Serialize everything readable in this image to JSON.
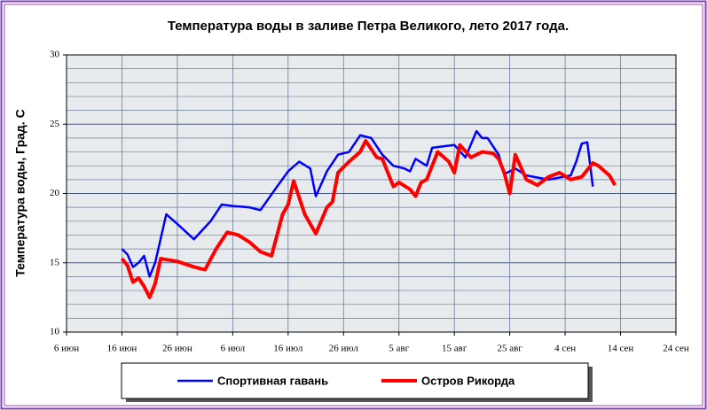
{
  "chart_data": {
    "type": "line",
    "title": "Температура воды в заливе Петра Великого,  лето 2017 года.",
    "y_label": "Температура воды, Град. С",
    "xlim": [
      "2017-06-06",
      "2017-09-24"
    ],
    "xticks": [
      {
        "value": "2017-06-06",
        "label": "6 июн"
      },
      {
        "value": "2017-06-16",
        "label": "16 июн"
      },
      {
        "value": "2017-06-26",
        "label": "26 июн"
      },
      {
        "value": "2017-07-06",
        "label": "6 июл"
      },
      {
        "value": "2017-07-16",
        "label": "16 июл"
      },
      {
        "value": "2017-07-26",
        "label": "26 июл"
      },
      {
        "value": "2017-08-05",
        "label": "5 авг"
      },
      {
        "value": "2017-08-15",
        "label": "15 авг"
      },
      {
        "value": "2017-08-25",
        "label": "25 авг"
      },
      {
        "value": "2017-09-04",
        "label": "4 сен"
      },
      {
        "value": "2017-09-14",
        "label": "14 сен"
      },
      {
        "value": "2017-09-24",
        "label": "24 сен"
      }
    ],
    "ylim": [
      10,
      30
    ],
    "yticks": [
      10,
      15,
      20,
      25,
      30
    ],
    "yminorticks": [
      11,
      12,
      13,
      14,
      16,
      17,
      18,
      19,
      21,
      22,
      23,
      24,
      26,
      27,
      28,
      29
    ],
    "grid": true,
    "series": [
      {
        "name": "Спортивная гавань",
        "color": "#0000ff",
        "x": [
          "2017-06-16",
          "2017-06-17",
          "2017-06-18",
          "2017-06-19",
          "2017-06-20",
          "2017-06-21",
          "2017-06-22",
          "2017-06-24",
          "2017-06-26",
          "2017-06-29",
          "2017-07-02",
          "2017-07-04",
          "2017-07-06",
          "2017-07-09",
          "2017-07-11",
          "2017-07-14",
          "2017-07-16",
          "2017-07-18",
          "2017-07-20",
          "2017-07-21",
          "2017-07-23",
          "2017-07-25",
          "2017-07-27",
          "2017-07-29",
          "2017-07-31",
          "2017-08-02",
          "2017-08-04",
          "2017-08-06",
          "2017-08-07",
          "2017-08-08",
          "2017-08-10",
          "2017-08-11",
          "2017-08-13",
          "2017-08-15",
          "2017-08-17",
          "2017-08-19",
          "2017-08-20",
          "2017-08-21",
          "2017-08-23",
          "2017-08-24",
          "2017-08-26",
          "2017-08-28",
          "2017-09-01",
          "2017-09-05",
          "2017-09-06",
          "2017-09-07",
          "2017-09-08",
          "2017-09-09"
        ],
        "values": [
          16.0,
          15.6,
          14.7,
          15.0,
          15.5,
          14.0,
          15.0,
          18.5,
          17.8,
          16.7,
          18.0,
          19.2,
          19.1,
          19.0,
          18.8,
          20.5,
          21.6,
          22.3,
          21.8,
          19.8,
          21.6,
          22.8,
          23.0,
          24.2,
          24.0,
          22.8,
          22.0,
          21.8,
          21.6,
          22.5,
          22.0,
          23.3,
          23.4,
          23.5,
          22.6,
          24.5,
          24.0,
          24.0,
          22.8,
          21.4,
          21.8,
          21.3,
          21.0,
          21.3,
          22.3,
          23.6,
          23.7,
          20.5
        ]
      },
      {
        "name": "Остров Рикорда",
        "color": "#ff0000",
        "x": [
          "2017-06-16",
          "2017-06-17",
          "2017-06-18",
          "2017-06-19",
          "2017-06-20",
          "2017-06-21",
          "2017-06-22",
          "2017-06-23",
          "2017-06-26",
          "2017-06-29",
          "2017-07-01",
          "2017-07-03",
          "2017-07-05",
          "2017-07-07",
          "2017-07-09",
          "2017-07-11",
          "2017-07-13",
          "2017-07-15",
          "2017-07-16",
          "2017-07-17",
          "2017-07-19",
          "2017-07-21",
          "2017-07-23",
          "2017-07-24",
          "2017-07-25",
          "2017-07-27",
          "2017-07-29",
          "2017-07-30",
          "2017-08-01",
          "2017-08-02",
          "2017-08-04",
          "2017-08-05",
          "2017-08-07",
          "2017-08-08",
          "2017-08-09",
          "2017-08-10",
          "2017-08-12",
          "2017-08-14",
          "2017-08-15",
          "2017-08-16",
          "2017-08-18",
          "2017-08-20",
          "2017-08-22",
          "2017-08-23",
          "2017-08-24",
          "2017-08-25",
          "2017-08-26",
          "2017-08-28",
          "2017-08-30",
          "2017-09-01",
          "2017-09-03",
          "2017-09-05",
          "2017-09-07",
          "2017-09-09",
          "2017-09-10",
          "2017-09-12",
          "2017-09-13"
        ],
        "values": [
          15.3,
          14.8,
          13.6,
          13.9,
          13.3,
          12.5,
          13.5,
          15.3,
          15.1,
          14.7,
          14.5,
          16.0,
          17.2,
          17.0,
          16.5,
          15.8,
          15.5,
          18.5,
          19.2,
          20.9,
          18.5,
          17.1,
          19.0,
          19.4,
          21.5,
          22.3,
          23.0,
          23.8,
          22.6,
          22.5,
          20.5,
          20.8,
          20.3,
          19.8,
          20.8,
          21.0,
          23.0,
          22.3,
          21.5,
          23.5,
          22.6,
          23.0,
          22.9,
          22.5,
          21.5,
          20.0,
          22.8,
          21.0,
          20.6,
          21.2,
          21.5,
          21.0,
          21.2,
          22.2,
          22.0,
          21.3,
          20.6
        ]
      }
    ]
  }
}
